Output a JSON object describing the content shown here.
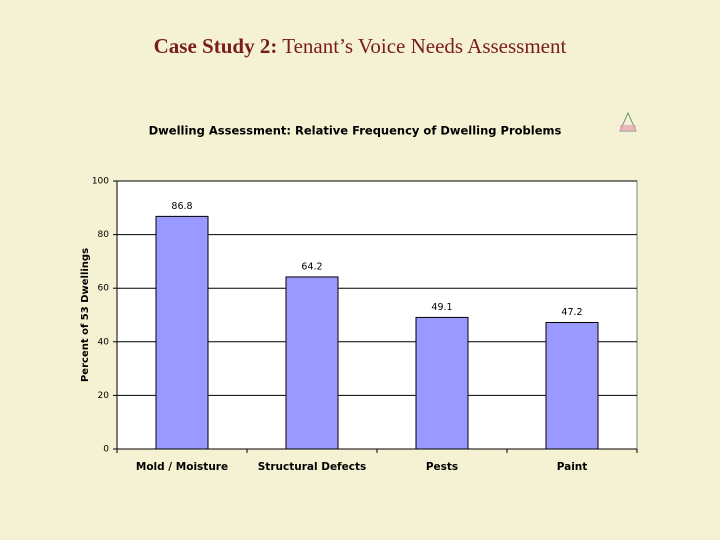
{
  "slide_title": {
    "lead": "Case Study 2:",
    "rest": "Tenant’s Voice Needs Assessment"
  },
  "chart_data": {
    "type": "bar",
    "title": "Dwelling Assessment: Relative Frequency of Dwelling Problems",
    "y_label": "Percent of 53 Dwellings",
    "categories": [
      "Mold / Moisture",
      "Structural Defects",
      "Pests",
      "Paint"
    ],
    "values": [
      86.8,
      64.2,
      49.1,
      47.2
    ],
    "color": "#9999ff",
    "ylim": [
      0,
      100
    ],
    "yticks": [
      0,
      20,
      40,
      60,
      80,
      100
    ],
    "grid": true
  }
}
